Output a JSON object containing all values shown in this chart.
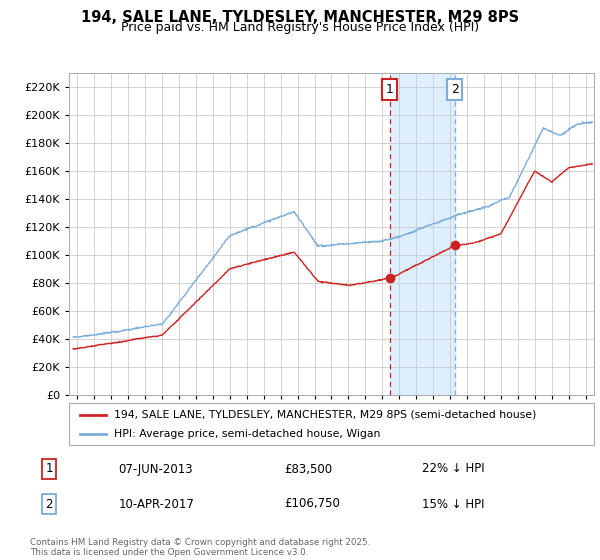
{
  "title": "194, SALE LANE, TYLDESLEY, MANCHESTER, M29 8PS",
  "subtitle": "Price paid vs. HM Land Registry's House Price Index (HPI)",
  "legend_line1": "194, SALE LANE, TYLDESLEY, MANCHESTER, M29 8PS (semi-detached house)",
  "legend_line2": "HPI: Average price, semi-detached house, Wigan",
  "footer": "Contains HM Land Registry data © Crown copyright and database right 2025.\nThis data is licensed under the Open Government Licence v3.0.",
  "annotation1_date": "07-JUN-2013",
  "annotation1_price": "£83,500",
  "annotation1_hpi": "22% ↓ HPI",
  "annotation2_date": "10-APR-2017",
  "annotation2_price": "£106,750",
  "annotation2_hpi": "15% ↓ HPI",
  "hpi_color": "#7aaddb",
  "price_color": "#cc2222",
  "vline1_color": "#cc2222",
  "vline2_color": "#7aaddb",
  "shaded_region_color": "#ddeeff",
  "grid_color": "#cccccc",
  "ylim": [
    0,
    230000
  ],
  "yticks": [
    0,
    20000,
    40000,
    60000,
    80000,
    100000,
    120000,
    140000,
    160000,
    180000,
    200000,
    220000
  ],
  "xlim_start": 1994.5,
  "xlim_end": 2025.5,
  "marker1_x": 2013.44,
  "marker1_y": 83500,
  "marker2_x": 2017.27,
  "marker2_y": 106750,
  "annot_box1_color": "#cc2222",
  "annot_box2_color": "#7aaddb"
}
